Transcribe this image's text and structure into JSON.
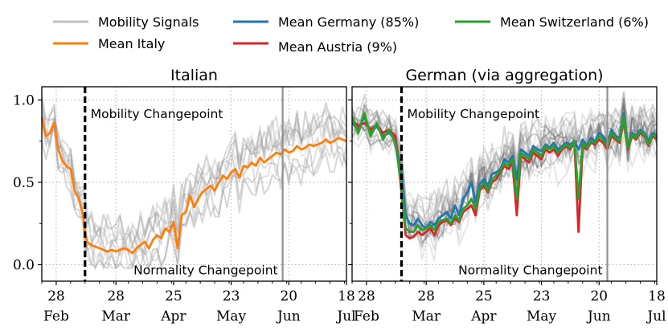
{
  "legend": {
    "items": [
      {
        "label": "Mobility Signals",
        "color": "#c0c0c0"
      },
      {
        "label": "Mean Italy",
        "color": "#ff7f0e"
      },
      {
        "label": "Mean Germany (85%)",
        "color": "#1f77b4"
      },
      {
        "label": "Mean Austria (9%)",
        "color": "#d62728"
      },
      {
        "label": "Mean Switzerland (6%)",
        "color": "#2ca02c"
      }
    ]
  },
  "chart_data": [
    {
      "type": "line",
      "title": "Italian",
      "x_unit": "days since 2020-02-21",
      "xlim": [
        0,
        148
      ],
      "ylim": [
        -0.1,
        1.08
      ],
      "yticks": [
        0.0,
        0.5,
        1.0
      ],
      "ytick_labels": [
        "0.0",
        "0.5",
        "1.0"
      ],
      "xticks": [
        {
          "x": 7,
          "day": "28",
          "month": "Feb"
        },
        {
          "x": 36,
          "day": "28",
          "month": "Mar"
        },
        {
          "x": 64,
          "day": "25",
          "month": "Apr"
        },
        {
          "x": 92,
          "day": "23",
          "month": "May"
        },
        {
          "x": 120,
          "day": "20",
          "month": "Jun"
        },
        {
          "x": 148,
          "day": "18",
          "month": "Jul"
        }
      ],
      "grid": true,
      "vlines": [
        {
          "x": 21,
          "style": "dashed",
          "color": "#000000",
          "label": "Mobility Changepoint",
          "label_y": 0.92
        },
        {
          "x": 117,
          "style": "solid",
          "color": "#909090",
          "label": "Normality Changepoint",
          "label_y": -0.03
        }
      ],
      "series": [
        {
          "name": "Mean Italy",
          "color": "#ff7f0e",
          "x": [
            0,
            2,
            4,
            6,
            8,
            10,
            12,
            14,
            16,
            18,
            20,
            21,
            22,
            24,
            26,
            28,
            30,
            32,
            34,
            36,
            38,
            40,
            42,
            44,
            46,
            48,
            50,
            52,
            54,
            56,
            58,
            60,
            62,
            64,
            66,
            68,
            70,
            72,
            74,
            76,
            78,
            80,
            82,
            84,
            86,
            88,
            90,
            92,
            94,
            96,
            98,
            100,
            102,
            104,
            106,
            108,
            110,
            112,
            114,
            116,
            118,
            120,
            122,
            124,
            126,
            128,
            130,
            132,
            134,
            136,
            138,
            140,
            142,
            144,
            146,
            148
          ],
          "values": [
            0.9,
            0.78,
            0.8,
            0.86,
            0.7,
            0.63,
            0.6,
            0.58,
            0.45,
            0.4,
            0.3,
            0.2,
            0.14,
            0.12,
            0.11,
            0.1,
            0.09,
            0.08,
            0.09,
            0.08,
            0.09,
            0.1,
            0.09,
            0.07,
            0.1,
            0.12,
            0.14,
            0.1,
            0.15,
            0.18,
            0.16,
            0.22,
            0.2,
            0.26,
            0.1,
            0.3,
            0.32,
            0.42,
            0.35,
            0.4,
            0.44,
            0.46,
            0.48,
            0.45,
            0.5,
            0.54,
            0.52,
            0.56,
            0.58,
            0.53,
            0.6,
            0.59,
            0.62,
            0.6,
            0.65,
            0.62,
            0.64,
            0.66,
            0.68,
            0.67,
            0.7,
            0.68,
            0.69,
            0.72,
            0.7,
            0.71,
            0.73,
            0.72,
            0.73,
            0.74,
            0.76,
            0.74,
            0.75,
            0.77,
            0.76,
            0.75
          ]
        }
      ]
    },
    {
      "type": "line",
      "title": "German (via aggregation)",
      "x_unit": "days since 2020-02-21",
      "xlim": [
        0,
        148
      ],
      "ylim": [
        -0.1,
        1.08
      ],
      "yticks": [
        0.0,
        0.5,
        1.0
      ],
      "xticks": [
        {
          "x": 7,
          "day": "28",
          "month": "Feb"
        },
        {
          "x": 36,
          "day": "28",
          "month": "Mar"
        },
        {
          "x": 64,
          "day": "25",
          "month": "Apr"
        },
        {
          "x": 92,
          "day": "23",
          "month": "May"
        },
        {
          "x": 120,
          "day": "20",
          "month": "Jun"
        },
        {
          "x": 148,
          "day": "18",
          "month": "Jul"
        }
      ],
      "grid": true,
      "vlines": [
        {
          "x": 24,
          "style": "dashed",
          "color": "#000000",
          "label": "Mobility Changepoint",
          "label_y": 0.92
        },
        {
          "x": 124,
          "style": "solid",
          "color": "#909090",
          "label": "Normality Changepoint",
          "label_y": -0.03
        }
      ],
      "series": [
        {
          "name": "Mean Germany (85%)",
          "color": "#1f77b4",
          "x": [
            0,
            3,
            6,
            9,
            12,
            15,
            18,
            21,
            24,
            26,
            28,
            30,
            32,
            34,
            36,
            38,
            40,
            42,
            44,
            46,
            48,
            50,
            52,
            54,
            56,
            58,
            60,
            62,
            64,
            66,
            68,
            70,
            72,
            74,
            76,
            78,
            80,
            82,
            84,
            86,
            88,
            90,
            92,
            94,
            96,
            98,
            100,
            102,
            104,
            106,
            108,
            110,
            112,
            114,
            116,
            118,
            120,
            122,
            124,
            126,
            128,
            130,
            132,
            134,
            136,
            138,
            140,
            142,
            144,
            146,
            148
          ],
          "values": [
            0.86,
            0.82,
            0.9,
            0.8,
            0.84,
            0.78,
            0.8,
            0.76,
            0.55,
            0.3,
            0.25,
            0.24,
            0.28,
            0.24,
            0.22,
            0.26,
            0.24,
            0.28,
            0.3,
            0.32,
            0.28,
            0.36,
            0.3,
            0.4,
            0.44,
            0.5,
            0.38,
            0.49,
            0.52,
            0.48,
            0.55,
            0.56,
            0.58,
            0.64,
            0.62,
            0.66,
            0.52,
            0.7,
            0.68,
            0.66,
            0.72,
            0.7,
            0.69,
            0.73,
            0.71,
            0.74,
            0.7,
            0.72,
            0.74,
            0.73,
            0.75,
            0.7,
            0.76,
            0.72,
            0.77,
            0.75,
            0.8,
            0.78,
            0.74,
            0.82,
            0.78,
            0.77,
            0.92,
            0.72,
            0.8,
            0.78,
            0.82,
            0.8,
            0.75,
            0.8,
            0.78
          ]
        },
        {
          "name": "Mean Austria (9%)",
          "color": "#d62728",
          "x": [
            0,
            3,
            6,
            9,
            12,
            15,
            18,
            21,
            24,
            26,
            28,
            30,
            32,
            34,
            36,
            38,
            40,
            42,
            44,
            46,
            48,
            50,
            52,
            54,
            56,
            58,
            60,
            62,
            64,
            66,
            68,
            70,
            72,
            74,
            76,
            78,
            80,
            82,
            84,
            86,
            88,
            90,
            92,
            94,
            96,
            98,
            100,
            102,
            104,
            106,
            108,
            110,
            112,
            114,
            116,
            118,
            120,
            122,
            124,
            126,
            128,
            130,
            132,
            134,
            136,
            138,
            140,
            142,
            144,
            146,
            148
          ],
          "values": [
            0.88,
            0.84,
            0.86,
            0.82,
            0.85,
            0.8,
            0.82,
            0.78,
            0.45,
            0.18,
            0.16,
            0.17,
            0.2,
            0.18,
            0.2,
            0.22,
            0.18,
            0.24,
            0.26,
            0.27,
            0.24,
            0.28,
            0.26,
            0.32,
            0.34,
            0.36,
            0.3,
            0.45,
            0.48,
            0.44,
            0.5,
            0.52,
            0.56,
            0.6,
            0.58,
            0.62,
            0.3,
            0.66,
            0.64,
            0.62,
            0.68,
            0.66,
            0.64,
            0.7,
            0.68,
            0.7,
            0.66,
            0.7,
            0.72,
            0.7,
            0.74,
            0.2,
            0.72,
            0.7,
            0.74,
            0.73,
            0.76,
            0.74,
            0.7,
            0.78,
            0.76,
            0.74,
            0.88,
            0.7,
            0.78,
            0.76,
            0.8,
            0.78,
            0.72,
            0.78,
            0.76
          ]
        },
        {
          "name": "Mean Switzerland (6%)",
          "color": "#2ca02c",
          "x": [
            0,
            3,
            6,
            9,
            12,
            15,
            18,
            21,
            24,
            26,
            28,
            30,
            32,
            34,
            36,
            38,
            40,
            42,
            44,
            46,
            48,
            50,
            52,
            54,
            56,
            58,
            60,
            62,
            64,
            66,
            68,
            70,
            72,
            74,
            76,
            78,
            80,
            82,
            84,
            86,
            88,
            90,
            92,
            94,
            96,
            98,
            100,
            102,
            104,
            106,
            108,
            110,
            112,
            114,
            116,
            118,
            120,
            122,
            124,
            126,
            128,
            130,
            132,
            134,
            136,
            138,
            140,
            142,
            144,
            146,
            148
          ],
          "values": [
            0.9,
            0.8,
            0.92,
            0.78,
            0.86,
            0.76,
            0.82,
            0.74,
            0.48,
            0.22,
            0.2,
            0.2,
            0.24,
            0.21,
            0.22,
            0.24,
            0.21,
            0.26,
            0.27,
            0.28,
            0.25,
            0.3,
            0.27,
            0.34,
            0.36,
            0.4,
            0.34,
            0.46,
            0.5,
            0.45,
            0.52,
            0.54,
            0.57,
            0.62,
            0.6,
            0.64,
            0.4,
            0.68,
            0.66,
            0.64,
            0.7,
            0.68,
            0.66,
            0.72,
            0.7,
            0.72,
            0.68,
            0.71,
            0.73,
            0.71,
            0.75,
            0.4,
            0.74,
            0.71,
            0.75,
            0.74,
            0.78,
            0.76,
            0.72,
            0.8,
            0.77,
            0.75,
            0.9,
            0.71,
            0.79,
            0.77,
            0.81,
            0.79,
            0.73,
            0.79,
            0.77
          ]
        }
      ]
    }
  ]
}
